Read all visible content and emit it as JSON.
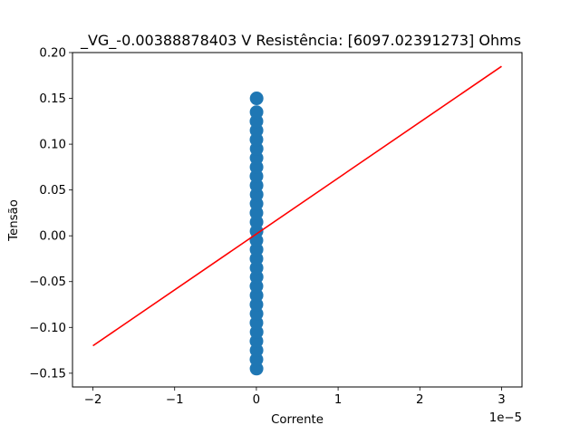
{
  "chart_data": {
    "type": "scatter",
    "title": "_VG_-0.00388878403 V  Resistência: [6097.02391273] Ohms",
    "xlabel": "Corrente",
    "ylabel": "Tensão",
    "x_offset_label": "1e−5",
    "x_scale": 1e-05,
    "xlim": [
      -2.25,
      3.25
    ],
    "ylim": [
      -0.165,
      0.2
    ],
    "x_ticks": [
      -2,
      -1,
      0,
      1,
      2,
      3
    ],
    "x_tick_labels": [
      "−2",
      "−1",
      "0",
      "1",
      "2",
      "3"
    ],
    "y_ticks": [
      -0.15,
      -0.1,
      -0.05,
      0.0,
      0.05,
      0.1,
      0.15,
      0.2
    ],
    "y_tick_labels": [
      "−0.15",
      "−0.10",
      "−0.05",
      "0.00",
      "0.05",
      "0.10",
      "0.15",
      "0.20"
    ],
    "series": [
      {
        "kind": "scatter",
        "color": "#1f77b4",
        "x": [
          0.002,
          0.001,
          0.002,
          0.001,
          0.003,
          0.001,
          0.002,
          0.001,
          0.002,
          0.001,
          0.003,
          0.002,
          0.001,
          0.002,
          0.001,
          0.002,
          0.002,
          0.001,
          0.002,
          0.003,
          0.002,
          0.001,
          0.002,
          0.002,
          0.003,
          0.001,
          0.002,
          0.001,
          0.002,
          0.003
        ],
        "y": [
          -0.145,
          -0.135,
          -0.125,
          -0.115,
          -0.105,
          -0.095,
          -0.085,
          -0.075,
          -0.065,
          -0.055,
          -0.045,
          -0.035,
          -0.025,
          -0.015,
          -0.005,
          0.005,
          0.015,
          0.025,
          0.035,
          0.045,
          0.055,
          0.065,
          0.075,
          0.085,
          0.095,
          0.105,
          0.115,
          0.125,
          0.135,
          0.15
        ]
      },
      {
        "kind": "line",
        "color": "#ff0000",
        "x": [
          -2,
          3
        ],
        "y": [
          -0.12,
          0.185
        ]
      }
    ],
    "grid": false
  }
}
